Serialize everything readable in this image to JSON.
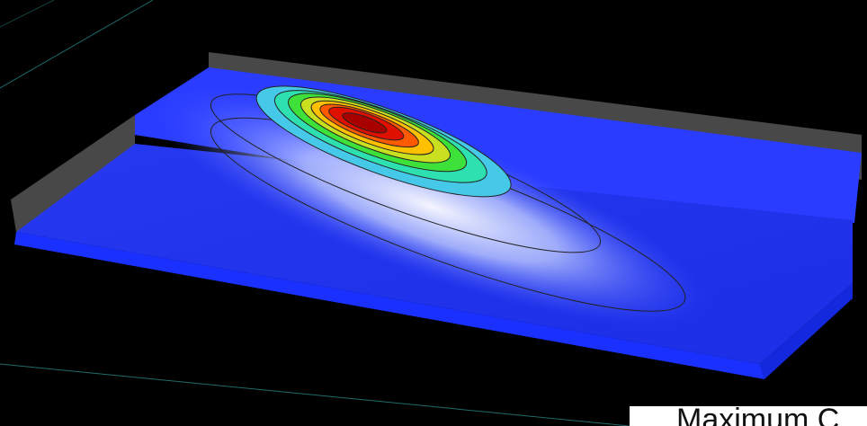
{
  "caption": "Maximum C"
}
